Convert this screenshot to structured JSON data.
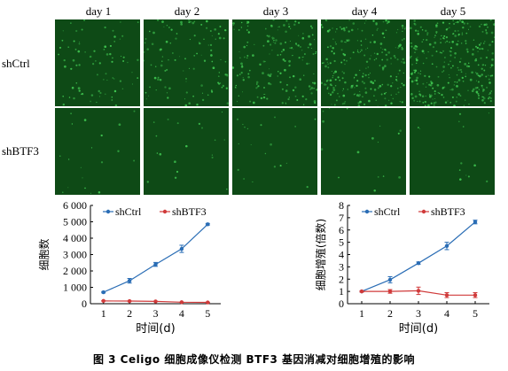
{
  "figure": {
    "days": [
      "day 1",
      "day 2",
      "day 3",
      "day 4",
      "day 5"
    ],
    "rows": [
      "shCtrl",
      "shBTF3"
    ],
    "micro_density": {
      "shCtrl": [
        0.25,
        0.35,
        0.55,
        0.75,
        0.95
      ],
      "shBTF3": [
        0.06,
        0.06,
        0.06,
        0.05,
        0.04
      ]
    },
    "micro_color": "#0e4a16",
    "cell_color": "#3ec24f",
    "caption": "图 3   Celigo 细胞成像仪检测 BTF3 基因消减对细胞增殖的影响"
  },
  "chart_data": [
    {
      "type": "line",
      "x": [
        1,
        2,
        3,
        4,
        5
      ],
      "xlim": [
        0.5,
        5.5
      ],
      "ylim": [
        0,
        6000
      ],
      "yticks": [
        0,
        1000,
        2000,
        3000,
        4000,
        5000,
        6000
      ],
      "ytick_labels": [
        "0",
        "1 000",
        "2 000",
        "3 000",
        "4 000",
        "5 000",
        "6 000"
      ],
      "xticks": [
        1,
        2,
        3,
        4,
        5
      ],
      "xtick_labels": [
        "1",
        "2",
        "3",
        "4",
        "5"
      ],
      "xlabel": "时间(d)",
      "ylabel": "细胞数",
      "legend": "top",
      "series": [
        {
          "name": "shCtrl",
          "color": "#2a6db5",
          "values": [
            700,
            1400,
            2400,
            3350,
            4850
          ],
          "errors": [
            40,
            140,
            120,
            220,
            50
          ]
        },
        {
          "name": "shBTF3",
          "color": "#d03a3a",
          "values": [
            170,
            160,
            140,
            90,
            80
          ],
          "errors": [
            10,
            10,
            10,
            10,
            10
          ]
        }
      ]
    },
    {
      "type": "line",
      "x": [
        1,
        2,
        3,
        4,
        5
      ],
      "xlim": [
        0.5,
        5.5
      ],
      "ylim": [
        0,
        8
      ],
      "yticks": [
        0,
        1,
        2,
        3,
        4,
        5,
        6,
        7,
        8
      ],
      "ytick_labels": [
        "0",
        "1",
        "2",
        "3",
        "4",
        "5",
        "6",
        "7",
        "8"
      ],
      "xticks": [
        1,
        2,
        3,
        4,
        5
      ],
      "xtick_labels": [
        "1",
        "2",
        "3",
        "4",
        "5"
      ],
      "xlabel": "时间(d)",
      "ylabel": "细胞增殖(倍数)",
      "legend": "top",
      "series": [
        {
          "name": "shCtrl",
          "color": "#2a6db5",
          "values": [
            1,
            1.95,
            3.3,
            4.7,
            6.65
          ],
          "errors": [
            0.05,
            0.25,
            0.1,
            0.3,
            0.15
          ]
        },
        {
          "name": "shBTF3",
          "color": "#d03a3a",
          "values": [
            1,
            1.0,
            1.05,
            0.7,
            0.7
          ],
          "errors": [
            0.05,
            0.15,
            0.3,
            0.2,
            0.2
          ]
        }
      ]
    }
  ]
}
